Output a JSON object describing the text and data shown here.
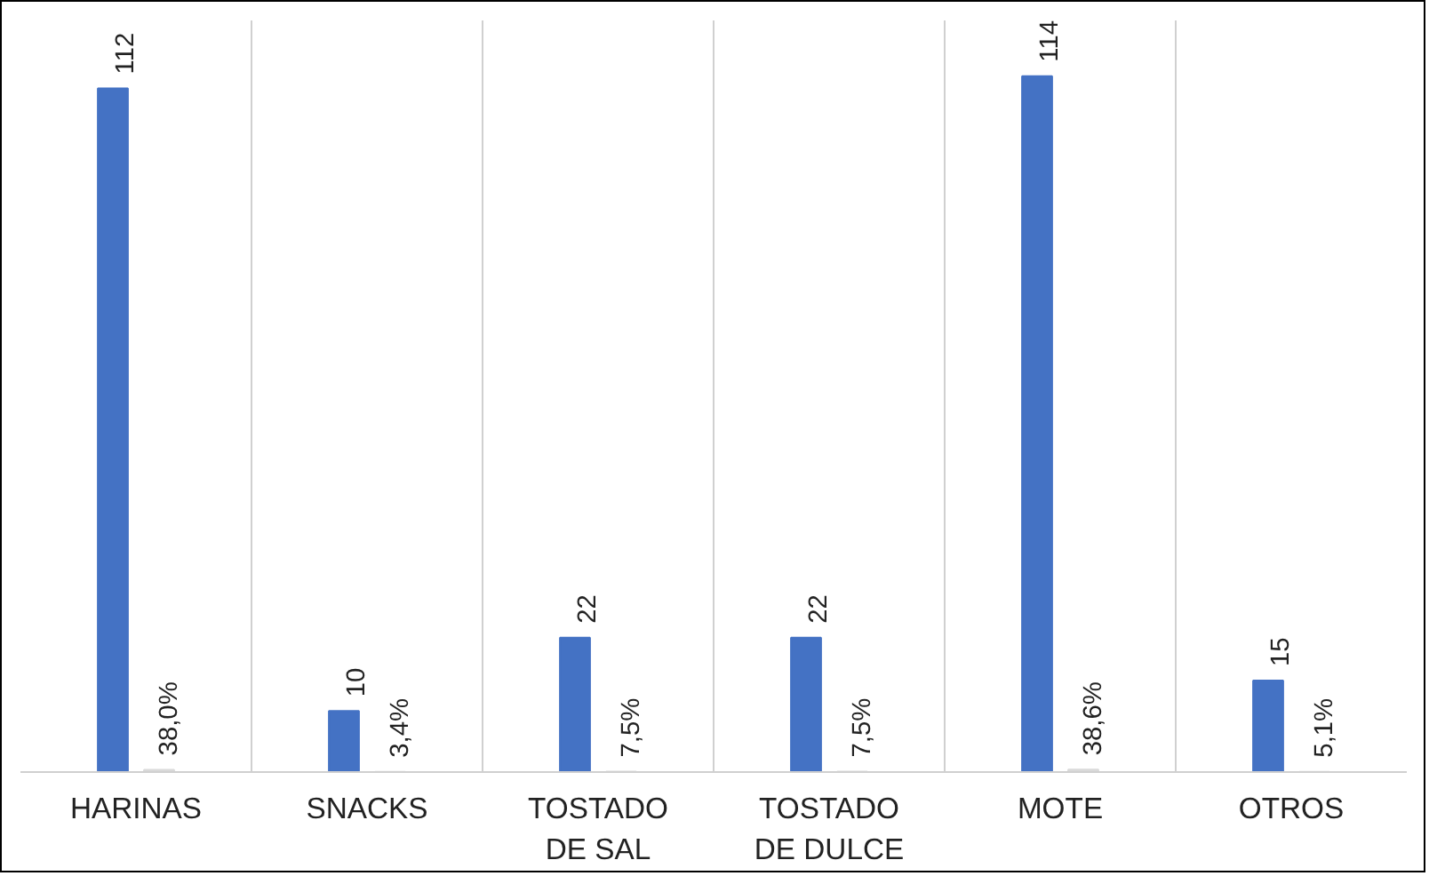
{
  "chart_data": {
    "type": "bar",
    "categories": [
      "HARINAS",
      "SNACKS",
      "TOSTADO DE SAL",
      "TOSTADO DE DULCE",
      "MOTE",
      "OTROS"
    ],
    "series": [
      {
        "color": "#4472c4",
        "values": [
          112,
          10,
          22,
          22,
          114,
          15
        ],
        "value_labels": [
          "112",
          "10",
          "22",
          "22",
          "114",
          "15"
        ]
      },
      {
        "color": "#d9d9d9",
        "values": [
          0.38,
          0.034,
          0.075,
          0.075,
          0.386,
          0.051
        ],
        "value_labels": [
          "38,0%",
          "3,4%",
          "7,5%",
          "7,5%",
          "38,6%",
          "5,1%"
        ]
      }
    ],
    "grid": "x",
    "tick_labels": "x"
  }
}
